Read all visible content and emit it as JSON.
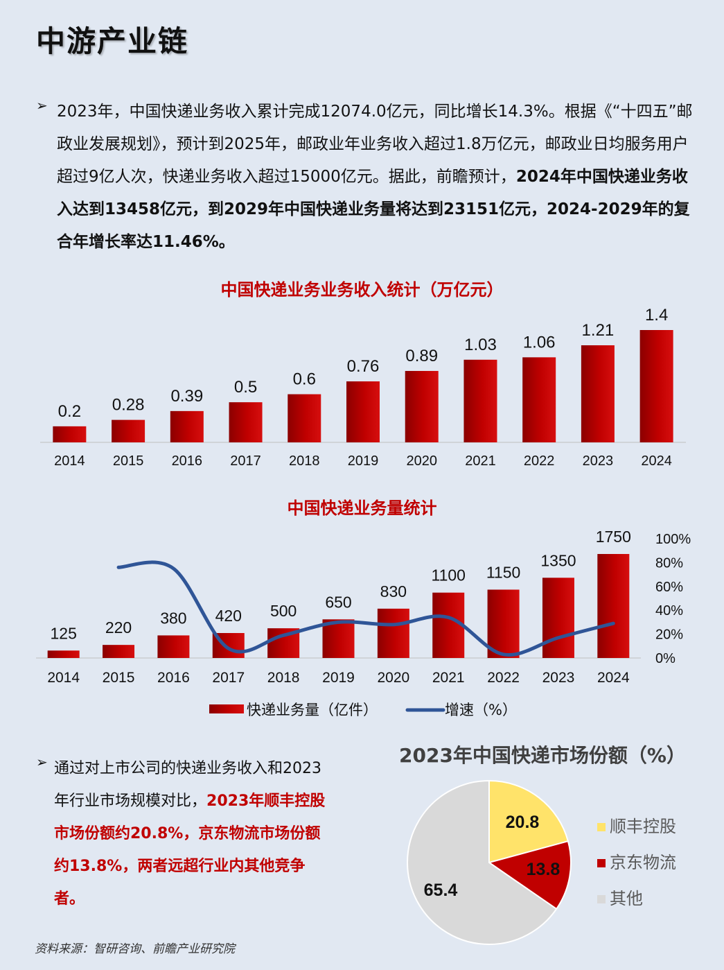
{
  "page": {
    "title": "中游产业链"
  },
  "intro": {
    "text_normal": "2023年，中国快递业务收入累计完成12074.0亿元，同比增长14.3%。根据《“十四五”邮政业发展规划》，预计到2025年，邮政业年业务收入超过1.8万亿元，邮政业日均服务用户超过9亿人次，快递业务收入超过15000亿元。据此，前瞻预计，",
    "text_bold": "2024年中国快递业务收入达到13458亿元，到2029年中国快递业务量将达到23151亿元，2024-2029年的复合年增长率达11.46%。"
  },
  "chart_data": [
    {
      "type": "bar",
      "title": "中国快递业务业务收入统计（万亿元）",
      "categories": [
        "2014",
        "2015",
        "2016",
        "2017",
        "2018",
        "2019",
        "2020",
        "2021",
        "2022",
        "2023",
        "2024"
      ],
      "values": [
        0.2,
        0.28,
        0.39,
        0.5,
        0.6,
        0.76,
        0.89,
        1.03,
        1.06,
        1.21,
        1.4
      ],
      "color": "#c00000",
      "ylim": [
        0,
        1.4
      ],
      "grid": false
    },
    {
      "type": "bar+line",
      "title": "中国快递业务量统计",
      "categories": [
        "2014",
        "2015",
        "2016",
        "2017",
        "2018",
        "2019",
        "2020",
        "2021",
        "2022",
        "2023",
        "2024"
      ],
      "series": [
        {
          "name": "快递业务量（亿件）",
          "type": "bar",
          "axis": "left",
          "values": [
            125,
            220,
            380,
            420,
            500,
            650,
            830,
            1100,
            1150,
            1350,
            1750
          ],
          "color": "#c00000"
        },
        {
          "name": "增速（%）",
          "type": "line",
          "axis": "right",
          "x": [
            "2015",
            "2016",
            "2017",
            "2018",
            "2019",
            "2020",
            "2021",
            "2022",
            "2023",
            "2024"
          ],
          "values": [
            76,
            75,
            8,
            19,
            30,
            28,
            34,
            3,
            17,
            29
          ],
          "color": "#2f5597"
        }
      ],
      "y2_ticks": [
        "100%",
        "80%",
        "60%",
        "40%",
        "20%",
        "0%"
      ],
      "y2lim": [
        0,
        100
      ],
      "legend": "bottom"
    },
    {
      "type": "pie",
      "title": "2023年中国快递市场份额（%）",
      "labels": [
        "顺丰控股",
        "京东物流",
        "其他"
      ],
      "values": [
        20.8,
        13.8,
        65.4
      ],
      "colors": [
        "#ffe36a",
        "#c00000",
        "#d9d9d9"
      ],
      "legend": "right"
    }
  ],
  "market": {
    "text_normal": "通过对上市公司的快递业务收入和2023年行业市场规模对比，",
    "text_red": "2023年顺丰控股市场份额约20.8%，京东物流市场份额约13.8%，两者远超行业内其他竞争者。"
  },
  "source": "资料来源：智研咨询、前瞻产业研究院"
}
